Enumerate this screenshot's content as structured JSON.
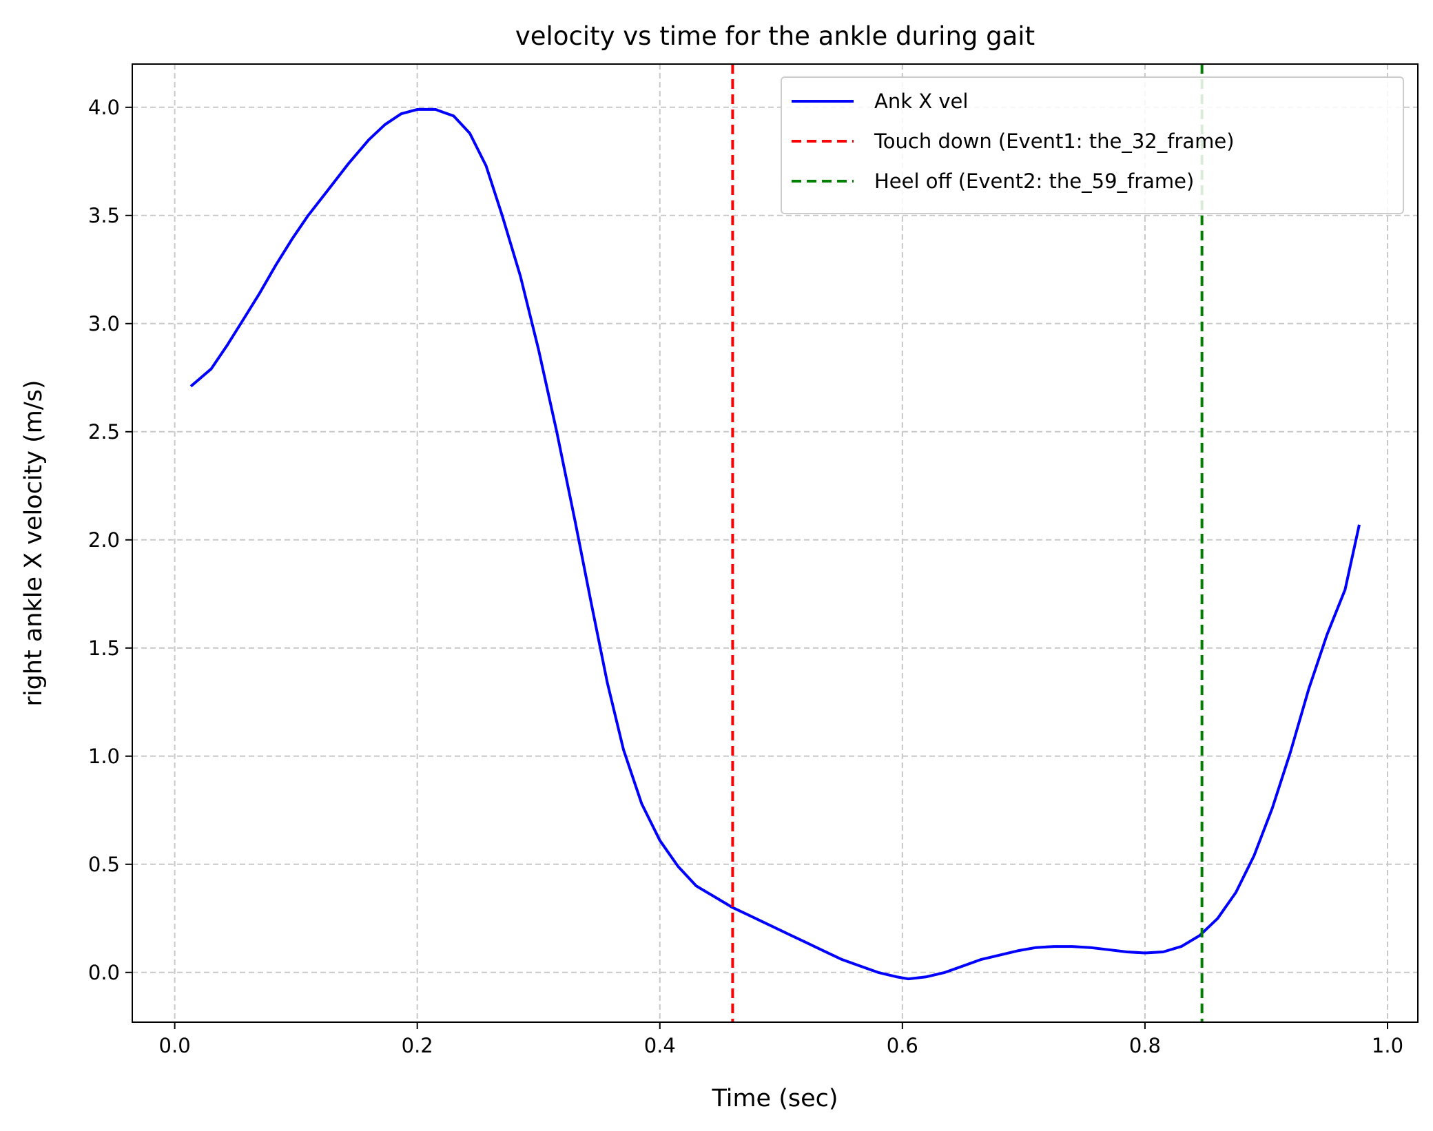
{
  "chart_data": {
    "type": "line",
    "title": "velocity vs time for the ankle during gait",
    "xlabel": "Time (sec)",
    "ylabel": "right ankle X velocity  (m/s)",
    "xlim": [
      -0.035,
      1.025
    ],
    "ylim": [
      -0.23,
      4.2
    ],
    "xticks": [
      0.0,
      0.2,
      0.4,
      0.6,
      0.8,
      1.0
    ],
    "xtick_labels": [
      "0.0",
      "0.2",
      "0.4",
      "0.6",
      "0.8",
      "1.0"
    ],
    "yticks": [
      0.0,
      0.5,
      1.0,
      1.5,
      2.0,
      2.5,
      3.0,
      3.5,
      4.0
    ],
    "ytick_labels": [
      "0.0",
      "0.5",
      "1.0",
      "1.5",
      "2.0",
      "2.5",
      "3.0",
      "3.5",
      "4.0"
    ],
    "grid": true,
    "legend_position": "upper right",
    "series": [
      {
        "name": "Ank X vel",
        "color": "#0000ff",
        "style": "solid",
        "x": [
          0.0133,
          0.03,
          0.0433,
          0.0567,
          0.07,
          0.0833,
          0.0967,
          0.11,
          0.1267,
          0.1433,
          0.16,
          0.1733,
          0.1867,
          0.2,
          0.215,
          0.23,
          0.2433,
          0.2567,
          0.27,
          0.285,
          0.3,
          0.315,
          0.33,
          0.3433,
          0.3567,
          0.37,
          0.385,
          0.4,
          0.415,
          0.43,
          0.445,
          0.46,
          0.475,
          0.49,
          0.505,
          0.52,
          0.535,
          0.55,
          0.565,
          0.58,
          0.595,
          0.605,
          0.62,
          0.635,
          0.65,
          0.665,
          0.68,
          0.695,
          0.71,
          0.725,
          0.74,
          0.755,
          0.77,
          0.785,
          0.8,
          0.815,
          0.83,
          0.845,
          0.86,
          0.875,
          0.89,
          0.905,
          0.92,
          0.935,
          0.95,
          0.965,
          0.9767
        ],
        "y": [
          2.71,
          2.79,
          2.9,
          3.02,
          3.14,
          3.27,
          3.39,
          3.5,
          3.62,
          3.74,
          3.85,
          3.92,
          3.97,
          3.99,
          3.99,
          3.96,
          3.88,
          3.73,
          3.5,
          3.22,
          2.88,
          2.5,
          2.09,
          1.71,
          1.34,
          1.03,
          0.78,
          0.61,
          0.49,
          0.4,
          0.35,
          0.3,
          0.26,
          0.22,
          0.18,
          0.14,
          0.1,
          0.06,
          0.03,
          0.0,
          -0.02,
          -0.03,
          -0.02,
          0.0,
          0.03,
          0.06,
          0.08,
          0.1,
          0.115,
          0.12,
          0.12,
          0.115,
          0.105,
          0.095,
          0.09,
          0.095,
          0.12,
          0.17,
          0.25,
          0.37,
          0.54,
          0.76,
          1.02,
          1.31,
          1.56,
          1.77,
          2.07
        ]
      },
      {
        "name": "Touch down (Event1: the_32_frame)",
        "color": "#ff0000",
        "style": "dashed",
        "vline_x": 0.46
      },
      {
        "name": "Heel off (Event2: the_59_frame)",
        "color": "#008000",
        "style": "dashed",
        "vline_x": 0.847
      }
    ]
  }
}
